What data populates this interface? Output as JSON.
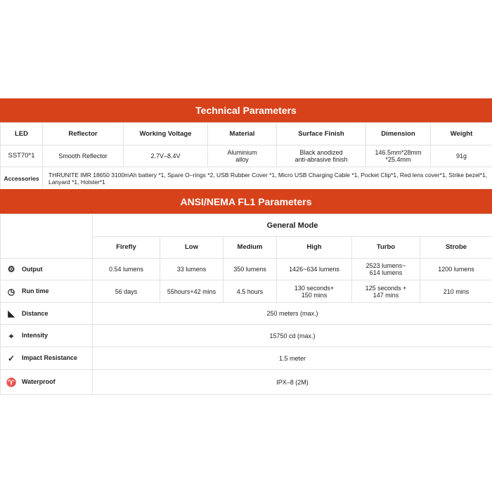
{
  "technical": {
    "title": "Technical Parameters",
    "headers": [
      "LED",
      "Reflector",
      "Working Voltage",
      "Material",
      "Surface Finish",
      "Dimension",
      "Weight"
    ],
    "values": [
      "SST70*1",
      "Smooth Reflector",
      "2.7V–8.4V",
      "Aluminium\nalloy",
      "Black anodized\nanti-abrasive finish",
      "146.5mm*28mm\n*25.4mm",
      "91g"
    ],
    "accessories_label": "Accessories",
    "accessories": "THRUNITE IMR 18650 3100mAh battery *1, Spare O–rings *2, USB Rubber Cover *1, Micro USB Charging Cable *1, Pocket Clip*1, Red lens cover*1, Strike bezel*1, Lanyard *1, Holster*1"
  },
  "ansi": {
    "title": "ANSI/NEMA FL1 Parameters",
    "mode_group": "General Mode",
    "modes": [
      "Firefly",
      "Low",
      "Medium",
      "High",
      "Turbo",
      "Strobe"
    ],
    "output": {
      "label": "Output",
      "icon": "output-icon",
      "values": [
        "0.54 lumens",
        "33 lumens",
        "350 lumens",
        "1426~634 lumens",
        "2523 lumens~\n614 lumens",
        "1200 lumens"
      ]
    },
    "runtime": {
      "label": "Run time",
      "icon": "clock-icon",
      "values": [
        "56 days",
        "55hours+42 mins",
        "4.5 hours",
        "130 seconds+\n150 mins",
        "125 seconds +\n147 mins",
        "210 mins"
      ]
    },
    "distance": {
      "label": "Distance",
      "icon": "distance-icon",
      "value": "250 meters (max.)"
    },
    "intensity": {
      "label": "Intensity",
      "icon": "target-icon",
      "value": "15750 cd (max.)"
    },
    "impact": {
      "label": "Impact Resistance",
      "icon": "impact-icon",
      "value": "1.5 meter"
    },
    "waterproof": {
      "label": "Waterproof",
      "icon": "waterproof-icon",
      "value": "IPX–8 (2M)"
    }
  },
  "colors": {
    "banner": "#d8421a"
  }
}
